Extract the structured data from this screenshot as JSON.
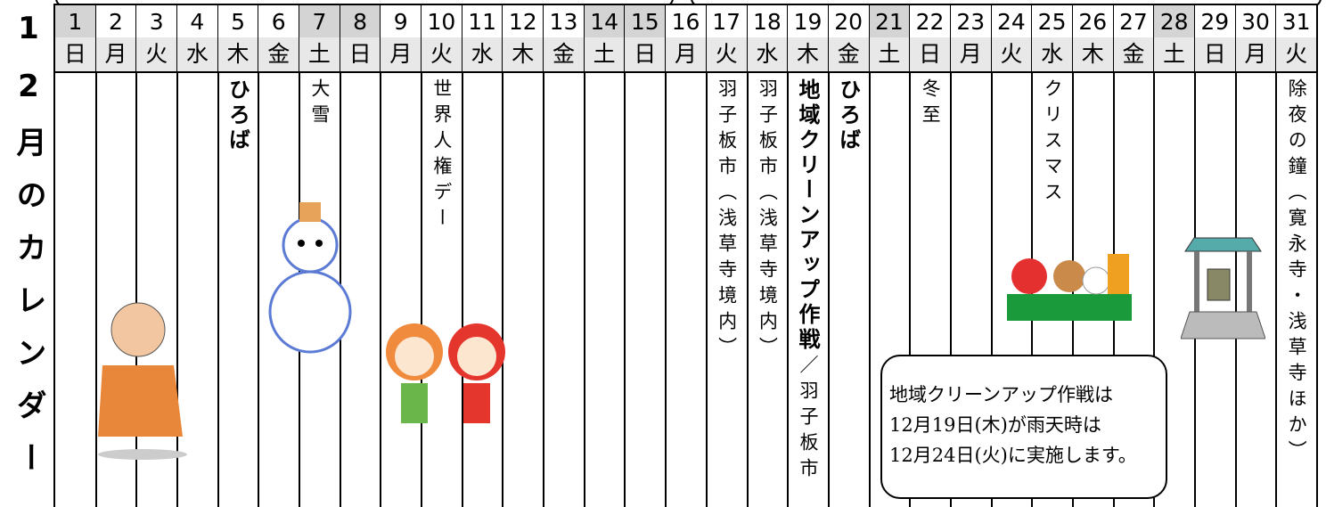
{
  "title": "12月のカレンダー",
  "days": [
    {
      "date": "1",
      "weekday": "日",
      "shaded": true,
      "events": []
    },
    {
      "date": "2",
      "weekday": "月",
      "events": []
    },
    {
      "date": "3",
      "weekday": "火",
      "events": []
    },
    {
      "date": "4",
      "weekday": "水",
      "events": []
    },
    {
      "date": "5",
      "weekday": "木",
      "events": [
        {
          "text": "ひろば",
          "style": "bold"
        }
      ]
    },
    {
      "date": "6",
      "weekday": "金",
      "events": []
    },
    {
      "date": "7",
      "weekday": "土",
      "shaded": true,
      "events": [
        {
          "text": "大雪"
        }
      ]
    },
    {
      "date": "8",
      "weekday": "日",
      "shaded": true,
      "events": []
    },
    {
      "date": "9",
      "weekday": "月",
      "events": []
    },
    {
      "date": "10",
      "weekday": "火",
      "events": [
        {
          "text": "世界人権デー"
        }
      ]
    },
    {
      "date": "11",
      "weekday": "水",
      "events": []
    },
    {
      "date": "12",
      "weekday": "木",
      "events": []
    },
    {
      "date": "13",
      "weekday": "金",
      "events": []
    },
    {
      "date": "14",
      "weekday": "土",
      "shaded": true,
      "events": []
    },
    {
      "date": "15",
      "weekday": "日",
      "shaded": true,
      "events": []
    },
    {
      "date": "16",
      "weekday": "月",
      "events": []
    },
    {
      "date": "17",
      "weekday": "火",
      "events": [
        {
          "text": "羽子板市（浅草寺境内）"
        }
      ]
    },
    {
      "date": "18",
      "weekday": "水",
      "events": [
        {
          "text": "羽子板市（浅草寺境内）"
        }
      ]
    },
    {
      "date": "19",
      "weekday": "木",
      "events": [
        {
          "text": "地域クリーンアップ作戦",
          "style": "bold"
        },
        {
          "text": "／羽子板市"
        }
      ]
    },
    {
      "date": "20",
      "weekday": "金",
      "events": [
        {
          "text": "ひろば",
          "style": "bold"
        }
      ]
    },
    {
      "date": "21",
      "weekday": "土",
      "shaded": true,
      "events": []
    },
    {
      "date": "22",
      "weekday": "日",
      "events": [
        {
          "text": "冬至"
        }
      ]
    },
    {
      "date": "23",
      "weekday": "月",
      "events": []
    },
    {
      "date": "24",
      "weekday": "火",
      "events": []
    },
    {
      "date": "25",
      "weekday": "水",
      "events": [
        {
          "text": "クリスマス"
        }
      ]
    },
    {
      "date": "26",
      "weekday": "木",
      "events": []
    },
    {
      "date": "27",
      "weekday": "金",
      "events": []
    },
    {
      "date": "28",
      "weekday": "土",
      "shaded": true,
      "events": []
    },
    {
      "date": "29",
      "weekday": "日",
      "events": []
    },
    {
      "date": "30",
      "weekday": "月",
      "events": []
    },
    {
      "date": "31",
      "weekday": "火",
      "events": [
        {
          "text": "除夜の鐘（寛永寺・浅草寺ほか）"
        }
      ]
    }
  ],
  "note": [
    "地域クリーンアップ作戦は",
    "12月19日(木)が雨天時は",
    "12月24日(火)に実施します。"
  ]
}
